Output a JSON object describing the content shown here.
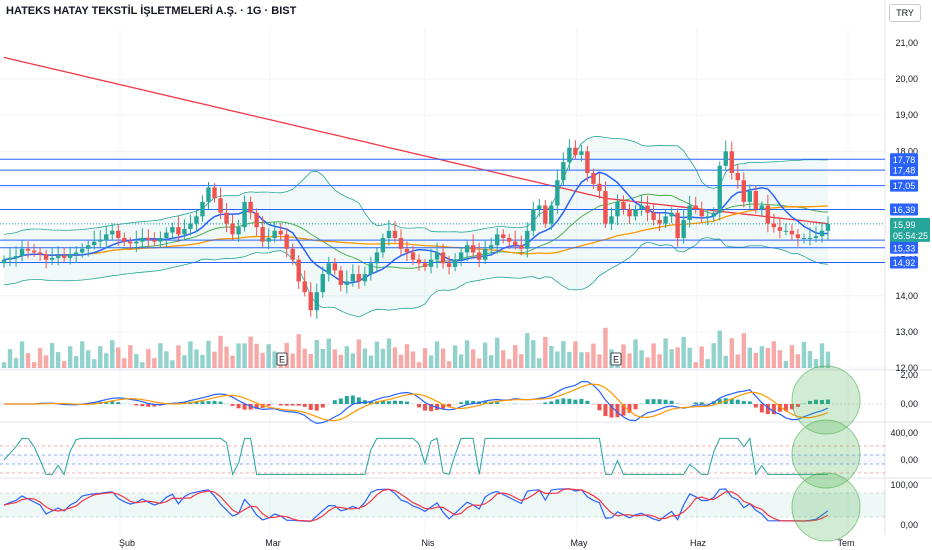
{
  "title": "HATEKS HATAY TEKSTİL İŞLETMELERİ A.Ş. · 1G · BIST",
  "currency": "TRY",
  "colors": {
    "up": "#26a69a",
    "down": "#ef5350",
    "blue": "#2962ff",
    "orange": "#ff9800",
    "red": "#f23645",
    "green": "#4caf50",
    "teal": "#26a69a"
  },
  "chart_data": [
    {
      "type": "candlestick",
      "panel": "price",
      "ylim": [
        12.0,
        21.4
      ],
      "yticks": [
        "21,00",
        "20,00",
        "19,00",
        "18,00",
        "17,00",
        "16,00",
        "15,00",
        "14,00",
        "13,00",
        "12,00"
      ],
      "yticks_values": [
        21,
        20,
        19,
        18,
        17,
        16,
        15,
        14,
        13,
        12
      ],
      "xticks": [
        "Şub",
        "Mar",
        "Nis",
        "May",
        "Haz",
        "Tem"
      ],
      "levels": [
        {
          "label": "17,78",
          "value": 17.78
        },
        {
          "label": "17,48",
          "value": 17.48
        },
        {
          "label": "17,05",
          "value": 17.05
        },
        {
          "label": "16,39",
          "value": 16.39
        },
        {
          "label": "15,54",
          "value": 15.54
        },
        {
          "label": "15,33",
          "value": 15.33
        },
        {
          "label": "14,92",
          "value": 14.92
        }
      ],
      "last_price": {
        "label": "15,99",
        "value": 15.99,
        "countdown": "05:54:25"
      },
      "closes": [
        15.0,
        15.05,
        15.1,
        15.3,
        15.25,
        15.2,
        15.15,
        15.0,
        15.05,
        15.1,
        15.05,
        15.15,
        15.2,
        15.3,
        15.4,
        15.5,
        15.55,
        15.7,
        15.8,
        15.6,
        15.5,
        15.45,
        15.5,
        15.6,
        15.55,
        15.5,
        15.6,
        15.75,
        15.9,
        15.7,
        15.85,
        16.0,
        16.2,
        16.6,
        17.0,
        16.7,
        16.3,
        16.0,
        15.7,
        15.9,
        16.6,
        16.3,
        15.9,
        15.5,
        15.6,
        15.8,
        15.7,
        15.3,
        15.0,
        14.4,
        14.1,
        13.6,
        14.1,
        14.6,
        14.9,
        14.7,
        14.3,
        14.4,
        14.6,
        14.4,
        14.6,
        14.9,
        15.2,
        15.6,
        15.8,
        15.6,
        15.3,
        15.2,
        15.0,
        14.9,
        14.8,
        15.0,
        15.2,
        14.9,
        14.8,
        15.0,
        15.2,
        15.4,
        15.2,
        15.0,
        15.3,
        15.4,
        15.7,
        15.6,
        15.5,
        15.4,
        15.3,
        15.8,
        16.4,
        16.5,
        16.0,
        16.5,
        17.2,
        17.7,
        18.1,
        17.9,
        18.0,
        17.4,
        17.1,
        16.9,
        16.0,
        16.2,
        16.6,
        16.4,
        16.2,
        16.4,
        16.5,
        16.3,
        16.1,
        16.0,
        16.2,
        16.3,
        15.6,
        16.1,
        16.5,
        16.4,
        16.2,
        16.2,
        16.3,
        17.6,
        18.0,
        17.4,
        17.2,
        16.6,
        16.9,
        16.4,
        16.5,
        16.0,
        15.9,
        15.8,
        15.8,
        15.7,
        15.6,
        15.6,
        15.6,
        15.65,
        15.8,
        15.99
      ],
      "opens": [
        14.9,
        15.0,
        15.05,
        15.1,
        15.3,
        15.25,
        15.2,
        15.15,
        15.0,
        15.05,
        15.1,
        15.05,
        15.15,
        15.2,
        15.3,
        15.4,
        15.5,
        15.55,
        15.7,
        15.8,
        15.6,
        15.5,
        15.45,
        15.5,
        15.6,
        15.55,
        15.5,
        15.6,
        15.75,
        15.9,
        15.7,
        15.85,
        16.0,
        16.2,
        16.6,
        17.0,
        16.7,
        16.3,
        16.0,
        15.7,
        15.9,
        16.6,
        16.3,
        15.9,
        15.5,
        15.6,
        15.8,
        15.7,
        15.3,
        15.0,
        14.4,
        14.1,
        13.6,
        14.1,
        14.6,
        14.9,
        14.7,
        14.3,
        14.4,
        14.6,
        14.4,
        14.6,
        14.9,
        15.2,
        15.6,
        15.8,
        15.6,
        15.3,
        15.2,
        15.0,
        14.9,
        14.8,
        15.0,
        15.2,
        14.9,
        14.8,
        15.0,
        15.2,
        15.4,
        15.2,
        15.0,
        15.3,
        15.4,
        15.7,
        15.6,
        15.5,
        15.4,
        15.3,
        15.8,
        16.4,
        16.5,
        16.0,
        16.5,
        17.2,
        17.7,
        18.1,
        17.9,
        18.0,
        17.4,
        17.1,
        16.9,
        16.0,
        16.2,
        16.6,
        16.4,
        16.2,
        16.4,
        16.5,
        16.3,
        16.1,
        16.0,
        16.2,
        16.3,
        15.6,
        16.1,
        16.5,
        16.4,
        16.2,
        16.2,
        16.3,
        17.6,
        18.0,
        17.4,
        17.2,
        16.6,
        16.9,
        16.4,
        16.5,
        16.0,
        15.9,
        15.8,
        15.8,
        15.7,
        15.6,
        15.6,
        15.6,
        15.65,
        15.8
      ]
    },
    {
      "type": "histogram+lines",
      "panel": "macd",
      "yticks": [
        "2,00",
        "0,00"
      ],
      "yticks_values": [
        2,
        0
      ]
    },
    {
      "type": "line",
      "panel": "cci",
      "yticks": [
        "400,00",
        "0,00"
      ],
      "yticks_values": [
        400,
        0
      ]
    },
    {
      "type": "line",
      "panel": "stochastic",
      "yticks": [
        "100,00",
        "0,00"
      ],
      "yticks_values": [
        100,
        0
      ]
    }
  ],
  "earnings_marker": "E"
}
